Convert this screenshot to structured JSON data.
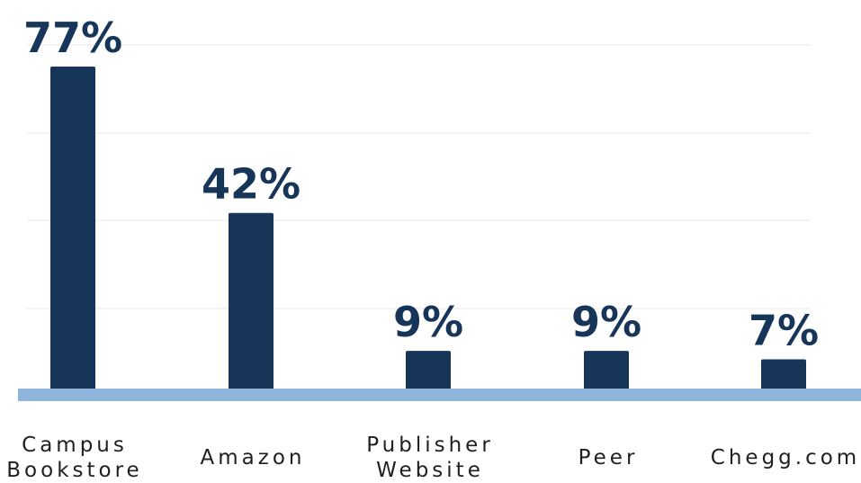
{
  "chart_data": {
    "type": "bar",
    "categories": [
      [
        "Campus",
        "Bookstore"
      ],
      [
        "Amazon"
      ],
      [
        "Publisher",
        "Website"
      ],
      [
        "Peer"
      ],
      [
        "Chegg.com"
      ]
    ],
    "values": [
      77,
      42,
      9,
      9,
      7
    ],
    "value_labels": [
      "77%",
      "42%",
      "9%",
      "9%",
      "7%"
    ],
    "ylim": [
      0,
      90
    ],
    "grid": true,
    "colors": {
      "bar": "#173459",
      "baseline": "#8fb4dc",
      "grid": "#efefef",
      "value_label": "#173459",
      "category_label": "#1f1f1f"
    }
  }
}
